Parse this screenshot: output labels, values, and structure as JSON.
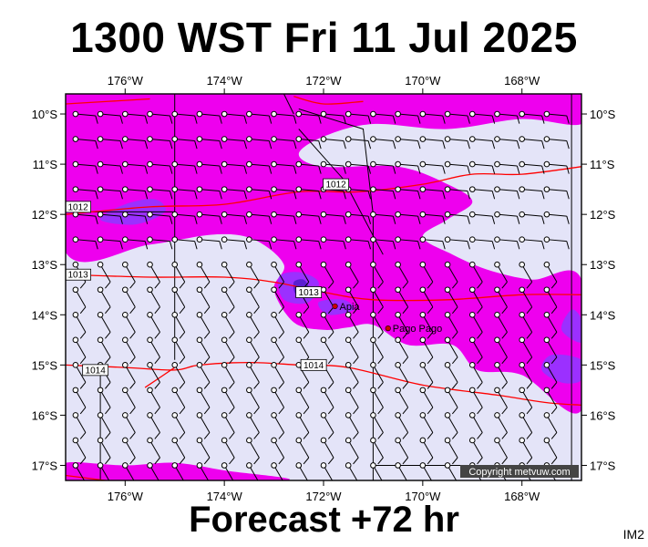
{
  "header": {
    "title": "1300 WST Fri 11 Jul 2025"
  },
  "footer": {
    "forecast": "Forecast +72 hr",
    "image_tag": "IM2"
  },
  "copyright": "Copyright metvuw.com",
  "colors": {
    "rain_light": "#e4e4f8",
    "rain_moderate": "#ee00ee",
    "rain_heavy": "#9b30ff",
    "rain_extreme": "#5a1fd0",
    "isobar": "#ff0000",
    "coast": "#000000"
  },
  "axes": {
    "longitude_labels": [
      "176°W",
      "174°W",
      "172°W",
      "170°W",
      "168°W"
    ],
    "longitudes": [
      -176,
      -174,
      -172,
      -170,
      -168
    ],
    "latitude_labels": [
      "10°S",
      "11°S",
      "12°S",
      "13°S",
      "14°S",
      "15°S",
      "16°S",
      "17°S"
    ],
    "latitudes": [
      -10,
      -11,
      -12,
      -13,
      -14,
      -15,
      -16,
      -17
    ],
    "lon_range": [
      -177.2,
      -166.8
    ],
    "lat_range": [
      -9.6,
      -17.3
    ]
  },
  "places": [
    {
      "name": "Apia",
      "lon": -171.77,
      "lat": -13.83
    },
    {
      "name": "Pago Pago",
      "lon": -170.7,
      "lat": -14.27
    }
  ],
  "isobars": [
    {
      "label": "1012",
      "points": [
        [
          -177.2,
          -12.0
        ],
        [
          -175.5,
          -11.85
        ],
        [
          -174.0,
          -11.8
        ],
        [
          -172.5,
          -11.55
        ],
        [
          -171.3,
          -11.55
        ],
        [
          -170.0,
          -11.4
        ],
        [
          -169.0,
          -11.2
        ],
        [
          -168.0,
          -11.2
        ],
        [
          -166.8,
          -11.05
        ]
      ],
      "label_at": [
        -171.75,
        -11.4
      ],
      "label2_at": [
        -176.95,
        -11.85
      ]
    },
    {
      "label": "1013",
      "points": [
        [
          -177.2,
          -13.2
        ],
        [
          -175.5,
          -13.25
        ],
        [
          -174.0,
          -13.25
        ],
        [
          -173.0,
          -13.35
        ],
        [
          -172.0,
          -13.55
        ],
        [
          -171.0,
          -13.7
        ],
        [
          -169.5,
          -13.7
        ],
        [
          -168.0,
          -13.6
        ],
        [
          -166.8,
          -13.6
        ]
      ],
      "label_at": [
        -172.3,
        -13.55
      ],
      "label2_at": [
        -176.95,
        -13.2
      ]
    },
    {
      "label": "1014",
      "points": [
        [
          -177.2,
          -15.0
        ],
        [
          -176.0,
          -15.05
        ],
        [
          -175.0,
          -15.1
        ],
        [
          -174.5,
          -15.0
        ],
        [
          -173.5,
          -14.95
        ],
        [
          -172.5,
          -15.0
        ],
        [
          -171.5,
          -15.05
        ],
        [
          -170.0,
          -15.4
        ],
        [
          -168.5,
          -15.6
        ],
        [
          -167.5,
          -15.75
        ],
        [
          -166.8,
          -15.8
        ]
      ],
      "label_at": [
        -172.2,
        -15.0
      ],
      "label2_at": [
        -176.6,
        -15.1
      ]
    },
    {
      "label": "",
      "points": [
        [
          -175.6,
          -15.45
        ],
        [
          -175.0,
          -15.05
        ]
      ],
      "label_at": null,
      "label2_at": null
    },
    {
      "label": "",
      "points": [
        [
          -177.2,
          -9.8
        ],
        [
          -175.5,
          -9.7
        ]
      ],
      "label_at": null,
      "label2_at": null
    },
    {
      "label": "",
      "points": [
        [
          -172.6,
          -9.65
        ],
        [
          -172.0,
          -9.8
        ],
        [
          -171.2,
          -9.75
        ]
      ],
      "label_at": null,
      "label2_at": null
    },
    {
      "label": "",
      "points": [
        [
          -177.2,
          -17.2
        ],
        [
          -176.0,
          -17.35
        ]
      ],
      "label_at": null,
      "label2_at": null
    }
  ],
  "rain": {
    "moderate_bands": [
      [
        [
          -177.2,
          -9.6
        ],
        [
          -166.8,
          -9.6
        ],
        [
          -166.8,
          -10.2
        ],
        [
          -168.0,
          -10.1
        ],
        [
          -169.5,
          -10.3
        ],
        [
          -171.0,
          -10.2
        ],
        [
          -172.0,
          -10.45
        ],
        [
          -172.5,
          -10.8
        ],
        [
          -172.0,
          -11.05
        ],
        [
          -170.5,
          -11.05
        ],
        [
          -169.5,
          -11.4
        ],
        [
          -169.0,
          -11.75
        ],
        [
          -169.5,
          -12.1
        ],
        [
          -170.0,
          -12.45
        ],
        [
          -169.4,
          -12.8
        ],
        [
          -168.7,
          -13.1
        ],
        [
          -167.8,
          -13.3
        ],
        [
          -166.8,
          -13.3
        ],
        [
          -166.8,
          -15.9
        ],
        [
          -168.0,
          -15.2
        ],
        [
          -168.9,
          -15.1
        ],
        [
          -169.4,
          -14.6
        ],
        [
          -170.3,
          -14.6
        ],
        [
          -171.0,
          -14.2
        ],
        [
          -171.5,
          -14.25
        ],
        [
          -172.0,
          -14.3
        ],
        [
          -172.6,
          -14.15
        ],
        [
          -173.0,
          -13.5
        ],
        [
          -172.8,
          -13.0
        ],
        [
          -173.4,
          -12.5
        ],
        [
          -174.2,
          -12.4
        ],
        [
          -175.5,
          -12.6
        ],
        [
          -177.2,
          -12.75
        ]
      ],
      [
        [
          -177.2,
          -16.95
        ],
        [
          -176.0,
          -17.0
        ],
        [
          -175.0,
          -16.95
        ],
        [
          -174.0,
          -17.1
        ],
        [
          -172.8,
          -17.3
        ],
        [
          -177.2,
          -17.3
        ]
      ]
    ],
    "heavy_blobs": [
      [
        [
          -172.9,
          -13.25
        ],
        [
          -172.5,
          -13.15
        ],
        [
          -172.1,
          -13.35
        ],
        [
          -172.3,
          -13.75
        ],
        [
          -172.8,
          -13.7
        ]
      ],
      [
        [
          -172.1,
          -13.75
        ],
        [
          -171.6,
          -13.7
        ],
        [
          -171.4,
          -13.9
        ],
        [
          -171.9,
          -14.0
        ]
      ],
      [
        [
          -176.0,
          -11.8
        ],
        [
          -175.4,
          -11.7
        ],
        [
          -175.2,
          -11.95
        ],
        [
          -175.8,
          -12.2
        ],
        [
          -176.5,
          -12.1
        ]
      ],
      [
        [
          -166.8,
          -14.9
        ],
        [
          -167.4,
          -14.8
        ],
        [
          -167.6,
          -15.1
        ],
        [
          -167.2,
          -15.35
        ],
        [
          -166.8,
          -15.3
        ]
      ],
      [
        [
          -166.8,
          -14.1
        ],
        [
          -167.0,
          -13.9
        ],
        [
          -167.2,
          -14.3
        ],
        [
          -166.8,
          -14.55
        ]
      ]
    ],
    "extreme_blobs": [
      [
        [
          -172.6,
          -13.35
        ],
        [
          -172.4,
          -13.3
        ],
        [
          -172.3,
          -13.5
        ],
        [
          -172.55,
          -13.6
        ]
      ]
    ],
    "light_holes": [
      [
        [
          -171.3,
          -10.6
        ],
        [
          -170.8,
          -10.55
        ],
        [
          -171.0,
          -10.75
        ]
      ]
    ]
  },
  "boundaries": [
    [
      [
        -175.0,
        -9.6
      ],
      [
        -175.0,
        -14.9
      ]
    ],
    [
      [
        -176.5,
        -15.0
      ],
      [
        -176.5,
        -17.3
      ]
    ],
    [
      [
        -172.5,
        -9.9
      ],
      [
        -171.2,
        -10.3
      ],
      [
        -171.0,
        -12.0
      ],
      [
        -171.0,
        -17.3
      ]
    ],
    [
      [
        -172.8,
        -9.6
      ],
      [
        -172.6,
        -10.0
      ]
    ],
    [
      [
        -172.5,
        -10.3
      ],
      [
        -171.6,
        -11.3
      ],
      [
        -170.8,
        -12.8
      ]
    ],
    [
      [
        -171.0,
        -17.0
      ],
      [
        -167.0,
        -17.0
      ]
    ],
    [
      [
        -167.0,
        -9.6
      ],
      [
        -167.0,
        -17.3
      ]
    ],
    [
      [
        -177.2,
        -11.95
      ],
      [
        -175.0,
        -11.95
      ]
    ]
  ],
  "wind": {
    "lon_step": 0.5,
    "lat_step": 0.5,
    "north_regime_direction_deg": 95,
    "south_regime_direction_deg": 150,
    "regime_split_lat": -12.6
  }
}
